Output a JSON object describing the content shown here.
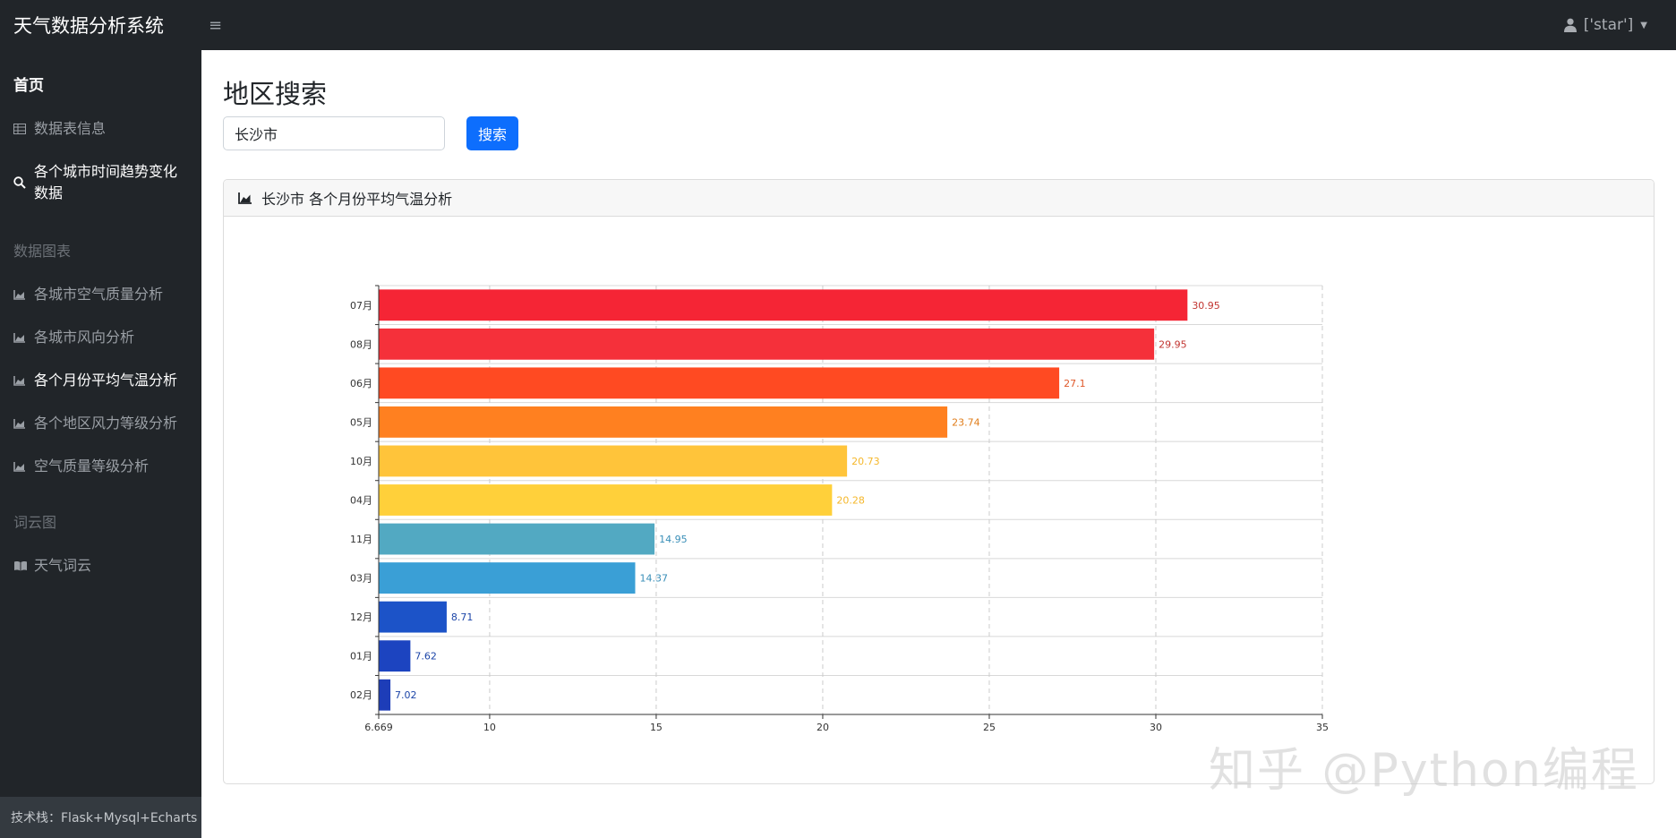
{
  "header": {
    "brand": "天气数据分析系统",
    "toggle_icon": "≡",
    "user": "['star']"
  },
  "sidebar": {
    "home": "首页",
    "items_top": [
      {
        "label": "数据表信息",
        "icon": "table-icon"
      },
      {
        "label": "各个城市时间趋势变化数据",
        "icon": "search-icon"
      }
    ],
    "section_charts": "数据图表",
    "items_charts": [
      {
        "label": "各城市空气质量分析",
        "icon": "area-chart-icon"
      },
      {
        "label": "各城市风向分析",
        "icon": "area-chart-icon"
      },
      {
        "label": "各个月份平均气温分析",
        "icon": "area-chart-icon"
      },
      {
        "label": "各个地区风力等级分析",
        "icon": "area-chart-icon"
      },
      {
        "label": "空气质量等级分析",
        "icon": "area-chart-icon"
      }
    ],
    "section_wordcloud": "词云图",
    "items_wordcloud": [
      {
        "label": "天气词云",
        "icon": "book-icon"
      }
    ],
    "footer": "技术栈：Flask+Mysql+Echarts"
  },
  "main": {
    "title": "地区搜索",
    "search": {
      "value": "长沙市",
      "button": "搜索"
    },
    "card_title": "长沙市 各个月份平均气温分析"
  },
  "watermark": "知乎 @Python编程",
  "chart_data": {
    "type": "bar",
    "orientation": "horizontal",
    "categories": [
      "07月",
      "08月",
      "06月",
      "05月",
      "10月",
      "04月",
      "11月",
      "03月",
      "12月",
      "01月",
      "02月"
    ],
    "values": [
      30.95,
      29.95,
      27.1,
      23.74,
      20.73,
      20.28,
      14.95,
      14.37,
      8.71,
      7.62,
      7.02
    ],
    "value_labels": [
      "30.95",
      "29.95",
      "27.1",
      "23.74",
      "20.73",
      "20.28",
      "14.95",
      "14.37",
      "8.71",
      "7.62",
      "7.02"
    ],
    "xlim": [
      6.669,
      35
    ],
    "x_ticks": [
      6.669,
      10,
      15,
      20,
      25,
      30,
      35
    ],
    "x_tick_labels": [
      "6.669",
      "10",
      "15",
      "20",
      "25",
      "30",
      "35"
    ],
    "grid": true,
    "colors": [
      "#f52535",
      "#f5303a",
      "#ff4a22",
      "#ff8020",
      "#ffc43a",
      "#ffd03a",
      "#52a9c2",
      "#3a9fd6",
      "#1c53c8",
      "#1c44c0",
      "#1d3db8"
    ],
    "label_colors": [
      "#c23531",
      "#c23531",
      "#e0582a",
      "#e07d1a",
      "#f5b72a",
      "#f5b72a",
      "#3a8fb8",
      "#3a8fb8",
      "#1c45a8",
      "#1c45a8",
      "#1c45a8"
    ]
  }
}
